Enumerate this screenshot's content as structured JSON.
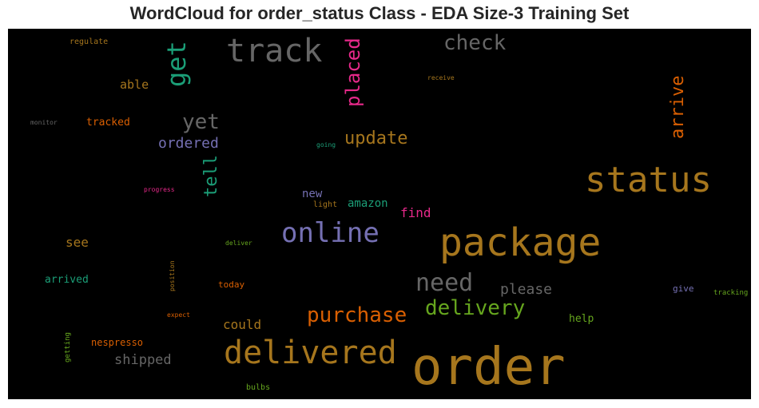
{
  "title": "WordCloud for order_status Class - EDA Size-3 Training Set",
  "colors": {
    "brown": "#a6761d",
    "gray": "#666666",
    "teal": "#1b9e77",
    "pink": "#e7298a",
    "orange": "#d95f02",
    "purple": "#7570b3",
    "green": "#66a61e"
  },
  "words": [
    {
      "text": "order",
      "color": "brown",
      "weight": 64
    },
    {
      "text": "package",
      "color": "brown",
      "weight": 48
    },
    {
      "text": "status",
      "color": "brown",
      "weight": 44
    },
    {
      "text": "delivered",
      "color": "brown",
      "weight": 40
    },
    {
      "text": "track",
      "color": "gray",
      "weight": 40
    },
    {
      "text": "online",
      "color": "purple",
      "weight": 34
    },
    {
      "text": "get",
      "color": "teal",
      "weight": 32
    },
    {
      "text": "need",
      "color": "gray",
      "weight": 30
    },
    {
      "text": "purchase",
      "color": "orange",
      "weight": 26
    },
    {
      "text": "check",
      "color": "gray",
      "weight": 26
    },
    {
      "text": "delivery",
      "color": "green",
      "weight": 26
    },
    {
      "text": "yet",
      "color": "gray",
      "weight": 26
    },
    {
      "text": "placed",
      "color": "pink",
      "weight": 24
    },
    {
      "text": "arrive",
      "color": "orange",
      "weight": 22
    },
    {
      "text": "update",
      "color": "brown",
      "weight": 22
    },
    {
      "text": "tell",
      "color": "teal",
      "weight": 22
    },
    {
      "text": "please",
      "color": "gray",
      "weight": 18
    },
    {
      "text": "ordered",
      "color": "purple",
      "weight": 18
    },
    {
      "text": "shipped",
      "color": "gray",
      "weight": 17
    },
    {
      "text": "could",
      "color": "brown",
      "weight": 16
    },
    {
      "text": "find",
      "color": "pink",
      "weight": 16
    },
    {
      "text": "see",
      "color": "brown",
      "weight": 16
    },
    {
      "text": "able",
      "color": "brown",
      "weight": 15
    },
    {
      "text": "amazon",
      "color": "teal",
      "weight": 14
    },
    {
      "text": "new",
      "color": "purple",
      "weight": 14
    },
    {
      "text": "tracked",
      "color": "orange",
      "weight": 13
    },
    {
      "text": "arrived",
      "color": "teal",
      "weight": 13
    },
    {
      "text": "help",
      "color": "green",
      "weight": 13
    },
    {
      "text": "nespresso",
      "color": "orange",
      "weight": 12
    },
    {
      "text": "today",
      "color": "orange",
      "weight": 11
    },
    {
      "text": "give",
      "color": "purple",
      "weight": 11
    },
    {
      "text": "light",
      "color": "brown",
      "weight": 10
    },
    {
      "text": "regulate",
      "color": "brown",
      "weight": 10
    },
    {
      "text": "bulbs",
      "color": "green",
      "weight": 10
    },
    {
      "text": "getting",
      "color": "green",
      "weight": 9
    },
    {
      "text": "tracking",
      "color": "green",
      "weight": 9
    },
    {
      "text": "receive",
      "color": "brown",
      "weight": 8
    },
    {
      "text": "monitor",
      "color": "gray",
      "weight": 8
    },
    {
      "text": "going",
      "color": "teal",
      "weight": 8
    },
    {
      "text": "progress",
      "color": "pink",
      "weight": 8
    },
    {
      "text": "deliver",
      "color": "green",
      "weight": 8
    },
    {
      "text": "position",
      "color": "brown",
      "weight": 8
    },
    {
      "text": "expect",
      "color": "orange",
      "weight": 8
    }
  ]
}
